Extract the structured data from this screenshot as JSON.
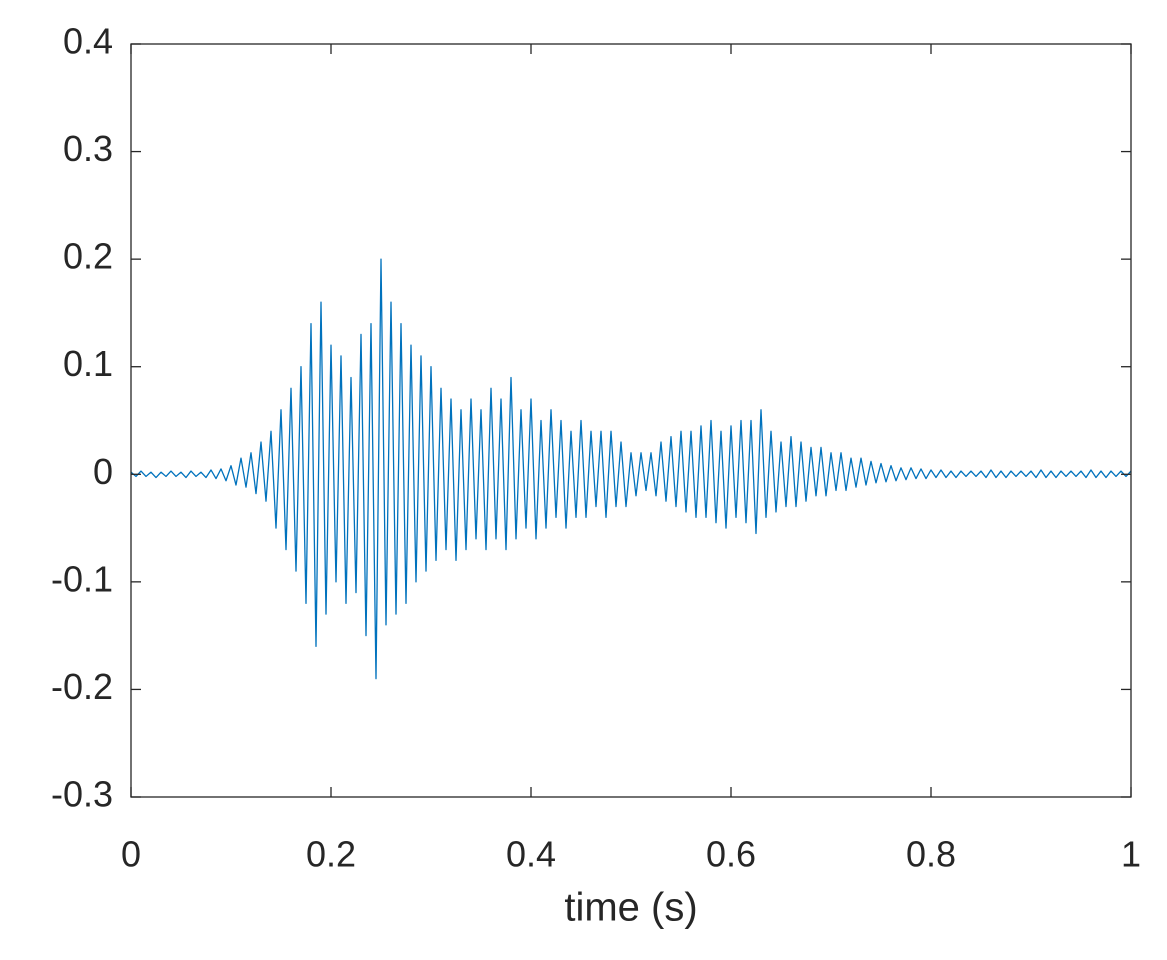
{
  "chart_data": {
    "type": "line",
    "xlabel": "time (s)",
    "color": "#0072bd",
    "xlim": [
      0,
      1
    ],
    "xticks": [
      0,
      0.2,
      0.4,
      0.6,
      0.8,
      1
    ],
    "ylim": [
      -0.3,
      0.4
    ],
    "yticks": [
      -0.3,
      -0.2,
      -0.1,
      0,
      0.1,
      0.2,
      0.3,
      0.4
    ],
    "grid": false,
    "x": [
      0,
      0.005,
      0.01,
      0.015,
      0.02,
      0.025,
      0.03,
      0.035,
      0.04,
      0.045,
      0.05,
      0.055,
      0.06,
      0.065,
      0.07,
      0.075,
      0.08,
      0.085,
      0.09,
      0.095,
      0.1,
      0.105,
      0.11,
      0.115,
      0.12,
      0.125,
      0.13,
      0.135,
      0.14,
      0.145,
      0.15,
      0.155,
      0.16,
      0.165,
      0.17,
      0.175,
      0.18,
      0.185,
      0.19,
      0.195,
      0.2,
      0.205,
      0.21,
      0.215,
      0.22,
      0.225,
      0.23,
      0.235,
      0.24,
      0.245,
      0.25,
      0.255,
      0.26,
      0.265,
      0.27,
      0.275,
      0.28,
      0.285,
      0.29,
      0.295,
      0.3,
      0.305,
      0.31,
      0.315,
      0.32,
      0.325,
      0.33,
      0.335,
      0.34,
      0.345,
      0.35,
      0.355,
      0.36,
      0.365,
      0.37,
      0.375,
      0.38,
      0.385,
      0.39,
      0.395,
      0.4,
      0.405,
      0.41,
      0.415,
      0.42,
      0.425,
      0.43,
      0.435,
      0.44,
      0.445,
      0.45,
      0.455,
      0.46,
      0.465,
      0.47,
      0.475,
      0.48,
      0.485,
      0.49,
      0.495,
      0.5,
      0.505,
      0.51,
      0.515,
      0.52,
      0.525,
      0.53,
      0.535,
      0.54,
      0.545,
      0.55,
      0.555,
      0.56,
      0.565,
      0.57,
      0.575,
      0.58,
      0.585,
      0.59,
      0.595,
      0.6,
      0.605,
      0.61,
      0.615,
      0.62,
      0.625,
      0.63,
      0.635,
      0.64,
      0.645,
      0.65,
      0.655,
      0.66,
      0.665,
      0.67,
      0.675,
      0.68,
      0.685,
      0.69,
      0.695,
      0.7,
      0.705,
      0.71,
      0.715,
      0.72,
      0.725,
      0.73,
      0.735,
      0.74,
      0.745,
      0.75,
      0.755,
      0.76,
      0.765,
      0.77,
      0.775,
      0.78,
      0.785,
      0.79,
      0.795,
      0.8,
      0.805,
      0.81,
      0.815,
      0.82,
      0.825,
      0.83,
      0.835,
      0.84,
      0.845,
      0.85,
      0.855,
      0.86,
      0.865,
      0.87,
      0.875,
      0.88,
      0.885,
      0.89,
      0.895,
      0.9,
      0.905,
      0.91,
      0.915,
      0.92,
      0.925,
      0.93,
      0.935,
      0.94,
      0.945,
      0.95,
      0.955,
      0.96,
      0.965,
      0.97,
      0.975,
      0.98,
      0.985,
      0.99,
      0.995,
      1
    ],
    "values": [
      0.002,
      -0.002,
      0.003,
      -0.002,
      0.002,
      -0.003,
      0.002,
      -0.002,
      0.003,
      -0.002,
      0.002,
      -0.003,
      0.003,
      -0.002,
      0.002,
      -0.003,
      0.004,
      -0.004,
      0.005,
      -0.006,
      0.008,
      -0.01,
      0.015,
      -0.012,
      0.02,
      -0.018,
      0.03,
      -0.025,
      0.04,
      -0.05,
      0.06,
      -0.07,
      0.08,
      -0.09,
      0.1,
      -0.12,
      0.14,
      -0.16,
      0.16,
      -0.13,
      0.12,
      -0.1,
      0.11,
      -0.12,
      0.09,
      -0.11,
      0.13,
      -0.15,
      0.14,
      -0.19,
      0.2,
      -0.14,
      0.16,
      -0.13,
      0.14,
      -0.12,
      0.12,
      -0.1,
      0.11,
      -0.09,
      0.1,
      -0.08,
      0.08,
      -0.07,
      0.07,
      -0.08,
      0.06,
      -0.07,
      0.07,
      -0.06,
      0.06,
      -0.07,
      0.08,
      -0.06,
      0.07,
      -0.07,
      0.09,
      -0.06,
      0.06,
      -0.05,
      0.07,
      -0.06,
      0.05,
      -0.05,
      0.06,
      -0.04,
      0.05,
      -0.05,
      0.04,
      -0.04,
      0.05,
      -0.04,
      0.04,
      -0.03,
      0.04,
      -0.04,
      0.04,
      -0.03,
      0.03,
      -0.03,
      0.02,
      -0.02,
      0.02,
      -0.015,
      0.02,
      -0.02,
      0.03,
      -0.025,
      0.035,
      -0.03,
      0.04,
      -0.035,
      0.04,
      -0.04,
      0.045,
      -0.04,
      0.05,
      -0.045,
      0.04,
      -0.05,
      0.045,
      -0.04,
      0.05,
      -0.045,
      0.05,
      -0.055,
      0.06,
      -0.04,
      0.04,
      -0.035,
      0.03,
      -0.03,
      0.035,
      -0.03,
      0.03,
      -0.025,
      0.025,
      -0.02,
      0.025,
      -0.02,
      0.02,
      -0.015,
      0.02,
      -0.015,
      0.015,
      -0.012,
      0.015,
      -0.01,
      0.012,
      -0.008,
      0.01,
      -0.007,
      0.008,
      -0.006,
      0.006,
      -0.005,
      0.006,
      -0.004,
      0.005,
      -0.004,
      0.004,
      -0.003,
      0.004,
      -0.003,
      0.003,
      -0.003,
      0.003,
      -0.002,
      0.003,
      -0.002,
      0.003,
      -0.003,
      0.004,
      -0.003,
      0.003,
      -0.003,
      0.003,
      -0.002,
      0.003,
      -0.002,
      0.003,
      -0.003,
      0.004,
      -0.003,
      0.003,
      -0.003,
      0.003,
      -0.002,
      0.003,
      -0.002,
      0.003,
      -0.003,
      0.004,
      -0.003,
      0.003,
      -0.003,
      0.003,
      -0.002,
      0.003,
      -0.002,
      0.003
    ]
  }
}
